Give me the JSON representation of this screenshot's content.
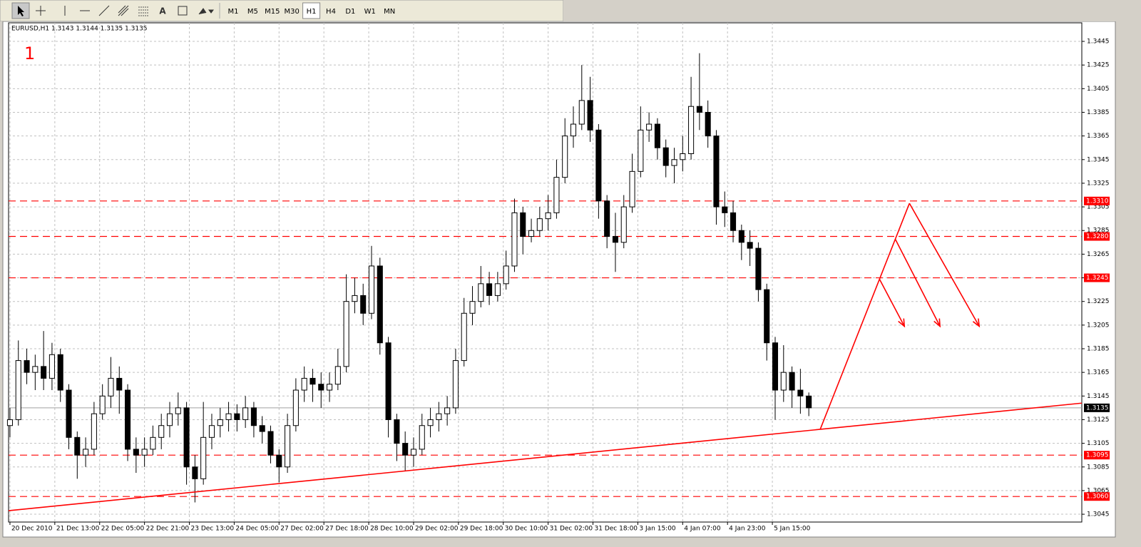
{
  "toolbar": {
    "timeframes": [
      "M1",
      "M5",
      "M15",
      "M30",
      "H1",
      "H4",
      "D1",
      "W1",
      "MN"
    ],
    "active": "H1"
  },
  "chart_data": {
    "type": "candlestick",
    "header": "EURUSD,H1  1.3143 1.3144 1.3135 1.3135",
    "annotation": "1",
    "x": [
      0,
      3,
      6,
      9,
      12,
      15,
      18,
      21,
      24,
      27,
      30,
      33,
      36,
      39,
      42,
      45,
      48,
      51,
      54,
      57,
      60,
      63,
      66,
      69,
      72,
      75,
      78,
      81,
      84,
      87,
      90,
      93,
      96,
      99,
      102,
      105,
      108,
      111,
      114,
      117,
      120,
      123,
      126,
      129,
      132,
      135,
      138,
      141,
      144,
      147,
      150,
      153,
      156,
      159,
      162,
      165,
      168,
      171,
      174,
      177,
      180,
      183,
      186,
      189,
      192,
      195,
      198,
      201,
      204,
      207,
      210,
      213,
      216,
      219,
      222,
      225,
      228,
      231,
      234,
      237,
      240,
      243,
      246,
      249,
      252,
      255,
      258,
      261,
      264,
      267,
      270,
      273,
      276,
      279,
      282,
      285
    ],
    "open": [
      1.312,
      1.3125,
      1.3175,
      1.3165,
      1.317,
      1.316,
      1.318,
      1.315,
      1.311,
      1.3095,
      1.31,
      1.313,
      1.3145,
      1.316,
      1.315,
      1.31,
      1.3095,
      1.31,
      1.311,
      1.312,
      1.313,
      1.3135,
      1.3085,
      1.3075,
      1.311,
      1.312,
      1.3125,
      1.313,
      1.3125,
      1.3135,
      1.312,
      1.3115,
      1.3095,
      1.3085,
      1.312,
      1.315,
      1.316,
      1.3155,
      1.315,
      1.3155,
      1.317,
      1.3225,
      1.323,
      1.3215,
      1.3255,
      1.319,
      1.3125,
      1.3105,
      1.3095,
      1.31,
      1.312,
      1.3125,
      1.313,
      1.3135,
      1.3175,
      1.3215,
      1.3225,
      1.324,
      1.323,
      1.324,
      1.3255,
      1.33,
      1.328,
      1.3285,
      1.3295,
      1.33,
      1.333,
      1.3365,
      1.3375,
      1.3395,
      1.337,
      1.331,
      1.328,
      1.3275,
      1.3305,
      1.3335,
      1.337,
      1.3375,
      1.3355,
      1.334,
      1.3345,
      1.335,
      1.339,
      1.3385,
      1.3365,
      1.3305,
      1.33,
      1.3285,
      1.3275,
      1.327,
      1.3235,
      1.319,
      1.315,
      1.3165,
      1.315,
      1.3145
    ],
    "high": [
      1.3135,
      1.3192,
      1.3185,
      1.318,
      1.32,
      1.319,
      1.3185,
      1.3155,
      1.3115,
      1.311,
      1.314,
      1.3155,
      1.3178,
      1.317,
      1.3155,
      1.311,
      1.311,
      1.312,
      1.313,
      1.314,
      1.3148,
      1.314,
      1.3095,
      1.314,
      1.313,
      1.3135,
      1.314,
      1.3138,
      1.3145,
      1.314,
      1.3128,
      1.312,
      1.31,
      1.313,
      1.316,
      1.317,
      1.3168,
      1.3165,
      1.3165,
      1.3185,
      1.3248,
      1.3245,
      1.324,
      1.3272,
      1.3262,
      1.3195,
      1.313,
      1.3115,
      1.311,
      1.313,
      1.3135,
      1.314,
      1.3145,
      1.3185,
      1.3228,
      1.3238,
      1.3255,
      1.325,
      1.325,
      1.3268,
      1.3312,
      1.3305,
      1.3295,
      1.3305,
      1.3315,
      1.3345,
      1.338,
      1.339,
      1.3425,
      1.3415,
      1.3375,
      1.3315,
      1.33,
      1.3315,
      1.335,
      1.339,
      1.3385,
      1.338,
      1.3362,
      1.3355,
      1.3365,
      1.3415,
      1.3435,
      1.3395,
      1.337,
      1.3318,
      1.331,
      1.329,
      1.3285,
      1.3275,
      1.324,
      1.3195,
      1.3188,
      1.317,
      1.3168,
      1.3148
    ],
    "low": [
      1.311,
      1.312,
      1.3155,
      1.315,
      1.315,
      1.315,
      1.314,
      1.31,
      1.3075,
      1.3085,
      1.3095,
      1.3125,
      1.3135,
      1.313,
      1.309,
      1.308,
      1.3085,
      1.3095,
      1.31,
      1.311,
      1.312,
      1.307,
      1.3055,
      1.307,
      1.31,
      1.311,
      1.3115,
      1.3115,
      1.3118,
      1.311,
      1.3105,
      1.3088,
      1.3072,
      1.308,
      1.3115,
      1.314,
      1.314,
      1.3135,
      1.314,
      1.315,
      1.3165,
      1.3215,
      1.3205,
      1.321,
      1.318,
      1.311,
      1.309,
      1.3082,
      1.3085,
      1.3095,
      1.311,
      1.3115,
      1.312,
      1.313,
      1.317,
      1.3205,
      1.322,
      1.3222,
      1.3225,
      1.3235,
      1.325,
      1.3265,
      1.3275,
      1.328,
      1.3285,
      1.3295,
      1.3325,
      1.3355,
      1.337,
      1.336,
      1.3295,
      1.327,
      1.325,
      1.327,
      1.33,
      1.333,
      1.336,
      1.3345,
      1.333,
      1.3325,
      1.3335,
      1.3345,
      1.337,
      1.3355,
      1.329,
      1.3288,
      1.3275,
      1.326,
      1.3255,
      1.3225,
      1.3175,
      1.3125,
      1.314,
      1.3135,
      1.313,
      1.3128
    ],
    "close": [
      1.3125,
      1.3175,
      1.3165,
      1.317,
      1.316,
      1.318,
      1.315,
      1.311,
      1.3095,
      1.31,
      1.313,
      1.3145,
      1.316,
      1.315,
      1.31,
      1.3095,
      1.31,
      1.311,
      1.312,
      1.313,
      1.3135,
      1.3085,
      1.3075,
      1.311,
      1.312,
      1.3125,
      1.313,
      1.3125,
      1.3135,
      1.312,
      1.3115,
      1.3095,
      1.3085,
      1.312,
      1.315,
      1.316,
      1.3155,
      1.315,
      1.3155,
      1.317,
      1.3225,
      1.323,
      1.3215,
      1.3255,
      1.319,
      1.3125,
      1.3105,
      1.3095,
      1.31,
      1.312,
      1.3125,
      1.313,
      1.3135,
      1.3175,
      1.3215,
      1.3225,
      1.324,
      1.323,
      1.324,
      1.3255,
      1.33,
      1.328,
      1.3285,
      1.3295,
      1.33,
      1.333,
      1.3365,
      1.3375,
      1.3395,
      1.337,
      1.331,
      1.328,
      1.3275,
      1.3305,
      1.3335,
      1.337,
      1.3375,
      1.3355,
      1.334,
      1.3345,
      1.335,
      1.339,
      1.3385,
      1.3365,
      1.3305,
      1.33,
      1.3285,
      1.3275,
      1.327,
      1.3235,
      1.319,
      1.315,
      1.3165,
      1.315,
      1.3145,
      1.3135
    ],
    "xlim": [
      -0.5,
      382.4
    ],
    "ylim": [
      1.30384,
      1.34607
    ],
    "xticks": [
      {
        "value": 0,
        "label": "20 Dec 2010"
      },
      {
        "value": 16,
        "label": "21 Dec 13:00"
      },
      {
        "value": 32,
        "label": "22 Dec 05:00"
      },
      {
        "value": 48,
        "label": "22 Dec 21:00"
      },
      {
        "value": 64,
        "label": "23 Dec 13:00"
      },
      {
        "value": 80,
        "label": "24 Dec 05:00"
      },
      {
        "value": 96,
        "label": "27 Dec 02:00"
      },
      {
        "value": 112,
        "label": "27 Dec 18:00"
      },
      {
        "value": 128,
        "label": "28 Dec 10:00"
      },
      {
        "value": 144,
        "label": "29 Dec 02:00"
      },
      {
        "value": 160,
        "label": "29 Dec 18:00"
      },
      {
        "value": 176,
        "label": "30 Dec 10:00"
      },
      {
        "value": 192,
        "label": "31 Dec 02:00"
      },
      {
        "value": 208,
        "label": "31 Dec 18:00"
      },
      {
        "value": 224,
        "label": "3 Jan 15:00"
      },
      {
        "value": 240,
        "label": "4 Jan 07:00"
      },
      {
        "value": 256,
        "label": "4 Jan 23:00"
      },
      {
        "value": 272,
        "label": "5 Jan 15:00"
      }
    ],
    "yticks": [
      1.3445,
      1.3425,
      1.3405,
      1.3385,
      1.3365,
      1.3345,
      1.3325,
      1.3305,
      1.3285,
      1.3265,
      1.3245,
      1.3225,
      1.3205,
      1.3185,
      1.3165,
      1.3145,
      1.3125,
      1.3105,
      1.3085,
      1.3065,
      1.3045
    ],
    "grid": true,
    "bull_color": "#ffffff",
    "bear_color": "#000000",
    "level_color": "#ff0000",
    "levels": [
      {
        "value": 1.331,
        "label": "1.3310"
      },
      {
        "value": 1.328,
        "label": "1.3280"
      },
      1.3245,
      1.3095,
      {
        "value": 1.306,
        "label": "1.3060"
      }
    ],
    "current_price": 1.3135,
    "trendline": [
      [
        -0.5,
        1.3048
      ],
      [
        382.4,
        1.3139
      ]
    ],
    "projection": [
      [
        289.1,
        1.3117
      ],
      [
        320.9,
        1.3308
      ]
    ],
    "arrows": [
      [
        [
          310.2,
          1.3244
        ],
        [
          319.1,
          1.3204
        ]
      ],
      [
        [
          315.8,
          1.3278
        ],
        [
          331.8,
          1.3204
        ]
      ],
      [
        [
          320.9,
          1.3308
        ],
        [
          345.8,
          1.3204
        ]
      ]
    ]
  }
}
